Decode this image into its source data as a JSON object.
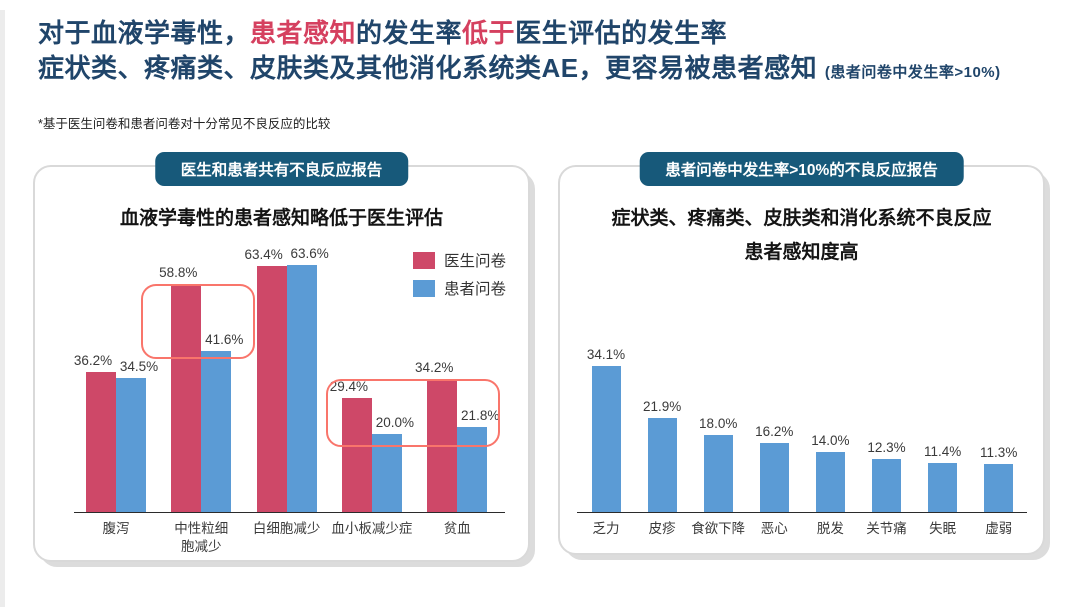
{
  "header": {
    "line1_segments": [
      {
        "text": "对于血液学毒性，",
        "accent": false
      },
      {
        "text": "患者感知",
        "accent": true
      },
      {
        "text": "的发生率",
        "accent": false
      },
      {
        "text": "低于",
        "accent": true
      },
      {
        "text": "医生评估的发生率",
        "accent": false
      }
    ],
    "line2_main": "症状类、疼痛类、皮肤类及其他消化系统类AE，更容易被患者感知",
    "line2_paren": "(患者问卷中发生率>10%)",
    "note": "*基于医生问卷和患者问卷对十分常见不良反应的比较",
    "colors": {
      "navy": "#20456a",
      "red": "#d5405f"
    }
  },
  "left_panel": {
    "badge": "医生和患者共有不良反应报告",
    "title": "血液学毒性的患者感知略低于医生评估"
  },
  "right_panel": {
    "badge": "患者问卷中发生率>10%的不良反应报告",
    "title_line1": "症状类、疼痛类、皮肤类和消化系统不良反应",
    "title_line2": "患者感知度高"
  },
  "colors": {
    "badge_bg": "#17597a",
    "doctor_bar": "#ce4868",
    "patient_bar": "#5b9bd5",
    "highlight_border": "#f9756b",
    "card_border": "#d9d9d9"
  },
  "chart_data": [
    {
      "type": "bar",
      "panel": "left",
      "title": "血液学毒性的患者感知略低于医生评估",
      "categories": [
        "腹泻",
        "中性粒细胞减少",
        "白细胞减少",
        "血小板减少症",
        "贫血"
      ],
      "series": [
        {
          "name": "医生问卷",
          "color": "#ce4868",
          "values": [
            36.2,
            58.8,
            63.4,
            29.4,
            34.2
          ]
        },
        {
          "name": "患者问卷",
          "color": "#5b9bd5",
          "values": [
            34.5,
            41.6,
            63.6,
            20.0,
            21.8
          ]
        }
      ],
      "value_suffix": "%",
      "xlabel": "",
      "ylabel": "",
      "ylim": [
        0,
        70
      ],
      "grid": false,
      "legend_position": "top-right",
      "highlighted_groups": [
        "中性粒细胞减少",
        "血小板减少症",
        "贫血"
      ]
    },
    {
      "type": "bar",
      "panel": "right",
      "title": "症状类、疼痛类、皮肤类和消化系统不良反应 患者感知度高",
      "categories": [
        "乏力",
        "皮疹",
        "食欲下降",
        "恶心",
        "脱发",
        "关节痛",
        "失眠",
        "虚弱"
      ],
      "series": [
        {
          "name": "患者问卷",
          "color": "#5b9bd5",
          "values": [
            34.1,
            21.9,
            18.0,
            16.2,
            14.0,
            12.3,
            11.4,
            11.3
          ]
        }
      ],
      "value_suffix": "%",
      "xlabel": "",
      "ylabel": "",
      "ylim": [
        0,
        40
      ],
      "grid": false,
      "legend_position": "none"
    }
  ]
}
